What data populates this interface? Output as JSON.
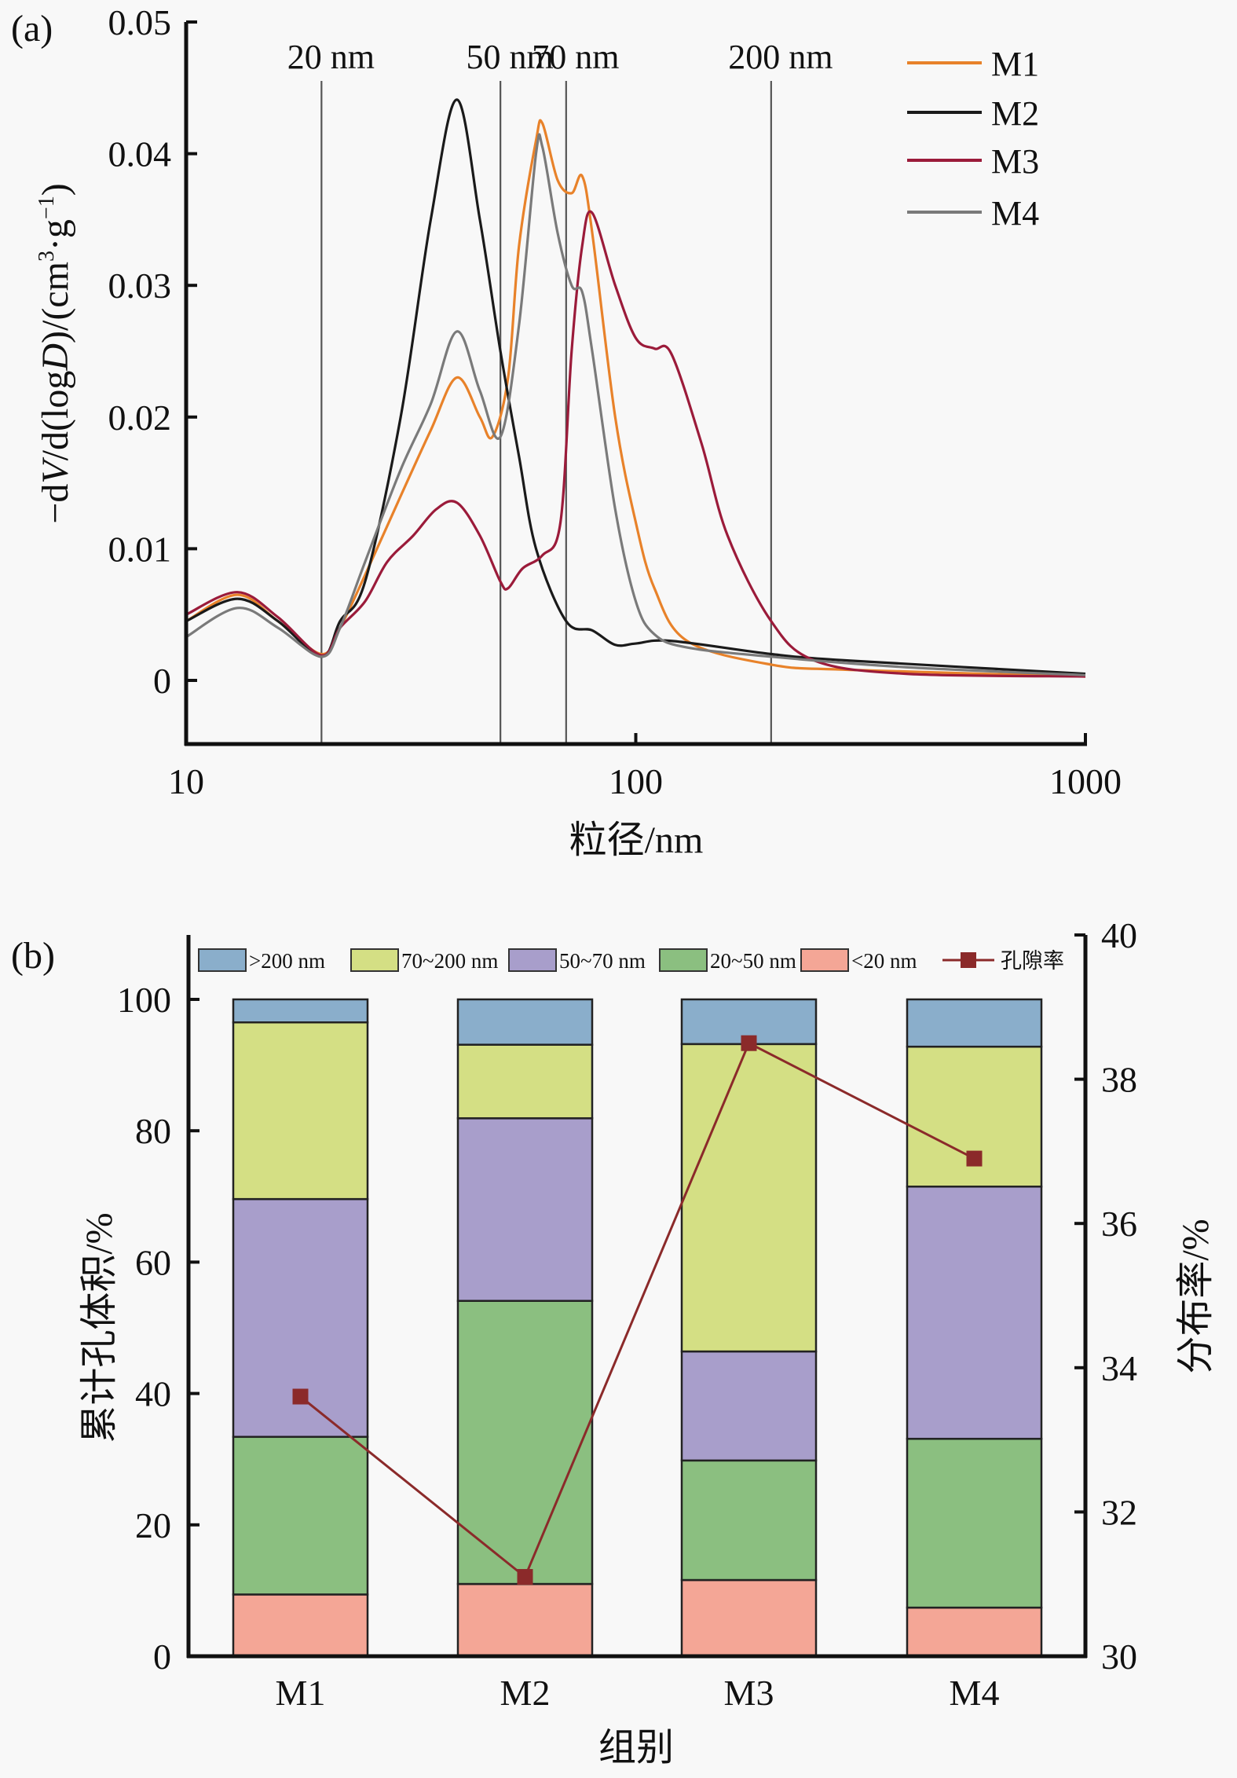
{
  "chart_data": [
    {
      "type": "line",
      "panel_label": "(a)",
      "xlabel": "粒径/nm",
      "ylabel_parts": [
        "−d",
        "V",
        "/d(log",
        "D",
        ")/(cm",
        "3",
        "·g",
        "−1",
        ")"
      ],
      "xscale": "log",
      "xlim": [
        10,
        1000
      ],
      "ylim": [
        -0.005,
        0.05
      ],
      "x_ticks": [
        10,
        100,
        1000
      ],
      "x_tick_labels": [
        "10",
        "100",
        "1000"
      ],
      "y_ticks": [
        0,
        0.01,
        0.02,
        0.03,
        0.04,
        0.05
      ],
      "y_tick_labels": [
        "0",
        "0.01",
        "0.02",
        "0.03",
        "0.04",
        "0.05"
      ],
      "reference_lines": [
        {
          "x": 20,
          "label": "20 nm"
        },
        {
          "x": 50,
          "label": "50 nm"
        },
        {
          "x": 70,
          "label": "70 nm"
        },
        {
          "x": 200,
          "label": "200 nm"
        }
      ],
      "legend_position": "top-right",
      "series": [
        {
          "name": "M1",
          "color": "#e8822a",
          "x": [
            10,
            13,
            16,
            20,
            22,
            25,
            30,
            35,
            40,
            45,
            48,
            52,
            55,
            60,
            62,
            67,
            72,
            76,
            80,
            90,
            100,
            110,
            130,
            200,
            300,
            1000
          ],
          "y": [
            0.0045,
            0.0065,
            0.0045,
            0.002,
            0.004,
            0.008,
            0.014,
            0.019,
            0.023,
            0.02,
            0.0185,
            0.023,
            0.033,
            0.041,
            0.0423,
            0.038,
            0.037,
            0.0383,
            0.034,
            0.02,
            0.012,
            0.007,
            0.003,
            0.0012,
            0.0008,
            0.0003
          ]
        },
        {
          "name": "M2",
          "color": "#1a1a1a",
          "x": [
            10,
            13,
            16,
            20,
            22,
            25,
            30,
            35,
            40,
            45,
            50,
            55,
            60,
            70,
            80,
            90,
            100,
            120,
            200,
            300,
            1000
          ],
          "y": [
            0.0045,
            0.0062,
            0.0045,
            0.0018,
            0.0045,
            0.0075,
            0.02,
            0.035,
            0.0441,
            0.035,
            0.025,
            0.017,
            0.01,
            0.0045,
            0.0038,
            0.0027,
            0.0028,
            0.003,
            0.002,
            0.0015,
            0.0005
          ]
        },
        {
          "name": "M3",
          "color": "#9b1b3a",
          "x": [
            10,
            13,
            16,
            20,
            22,
            25,
            28,
            32,
            36,
            40,
            45,
            50,
            52,
            56,
            62,
            68,
            72,
            76,
            80,
            90,
            100,
            110,
            120,
            140,
            160,
            200,
            250,
            400,
            1000
          ],
          "y": [
            0.005,
            0.0067,
            0.0048,
            0.0019,
            0.004,
            0.006,
            0.009,
            0.011,
            0.013,
            0.0135,
            0.011,
            0.0075,
            0.007,
            0.0085,
            0.0095,
            0.012,
            0.025,
            0.033,
            0.0355,
            0.03,
            0.026,
            0.0252,
            0.0248,
            0.018,
            0.011,
            0.0045,
            0.0015,
            0.0005,
            0.0003
          ]
        },
        {
          "name": "M4",
          "color": "#7a7a7a",
          "x": [
            10,
            13,
            16,
            20,
            22,
            25,
            30,
            35,
            40,
            45,
            50,
            55,
            60,
            62,
            67,
            72,
            76,
            80,
            90,
            100,
            110,
            130,
            200,
            400,
            1000
          ],
          "y": [
            0.0033,
            0.0055,
            0.004,
            0.0018,
            0.004,
            0.009,
            0.016,
            0.021,
            0.0265,
            0.022,
            0.0185,
            0.027,
            0.04,
            0.0405,
            0.034,
            0.03,
            0.0295,
            0.025,
            0.013,
            0.006,
            0.0035,
            0.0025,
            0.0018,
            0.001,
            0.0004
          ]
        }
      ]
    },
    {
      "type": "bar",
      "stacked": true,
      "panel_label": "(b)",
      "xlabel": "组别",
      "ylabel": "累计孔体积/%",
      "ylabel_right": "分布率/%",
      "categories": [
        "M1",
        "M2",
        "M3",
        "M4"
      ],
      "ylim": [
        0,
        110
      ],
      "ylim_right": [
        30,
        40
      ],
      "y_ticks": [
        0,
        20,
        40,
        60,
        80,
        100
      ],
      "y_tick_labels": [
        "0",
        "20",
        "40",
        "60",
        "80",
        "100"
      ],
      "y_ticks_right": [
        30,
        32,
        34,
        36,
        38,
        40
      ],
      "y_tick_labels_right": [
        "30",
        "32",
        "34",
        "36",
        "38",
        "40"
      ],
      "legend_position": "top",
      "series": [
        {
          "name": "<20 nm",
          "color": "#f4a696",
          "values": [
            9.4,
            11.0,
            11.6,
            7.4
          ]
        },
        {
          "name": "20~50 nm",
          "color": "#8bbf80",
          "values": [
            24.0,
            43.1,
            18.2,
            25.7
          ]
        },
        {
          "name": "50~70 nm",
          "color": "#a89ecb",
          "values": [
            36.2,
            27.8,
            16.6,
            38.4
          ]
        },
        {
          "name": "70~200 nm",
          "color": "#d4df84",
          "values": [
            26.9,
            11.2,
            46.8,
            21.3
          ]
        },
        {
          "name": ">200 nm",
          "color": "#8aaecb",
          "values": [
            3.5,
            6.9,
            6.8,
            7.2
          ]
        }
      ],
      "legend_order": [
        ">200 nm",
        "70~200 nm",
        "50~70 nm",
        "20~50 nm",
        "<20 nm",
        "孔隙率"
      ],
      "line_series": {
        "name": "孔隙率",
        "color": "#8b2a2a",
        "axis": "right",
        "values": [
          33.6,
          31.1,
          38.5,
          36.9
        ]
      }
    }
  ]
}
